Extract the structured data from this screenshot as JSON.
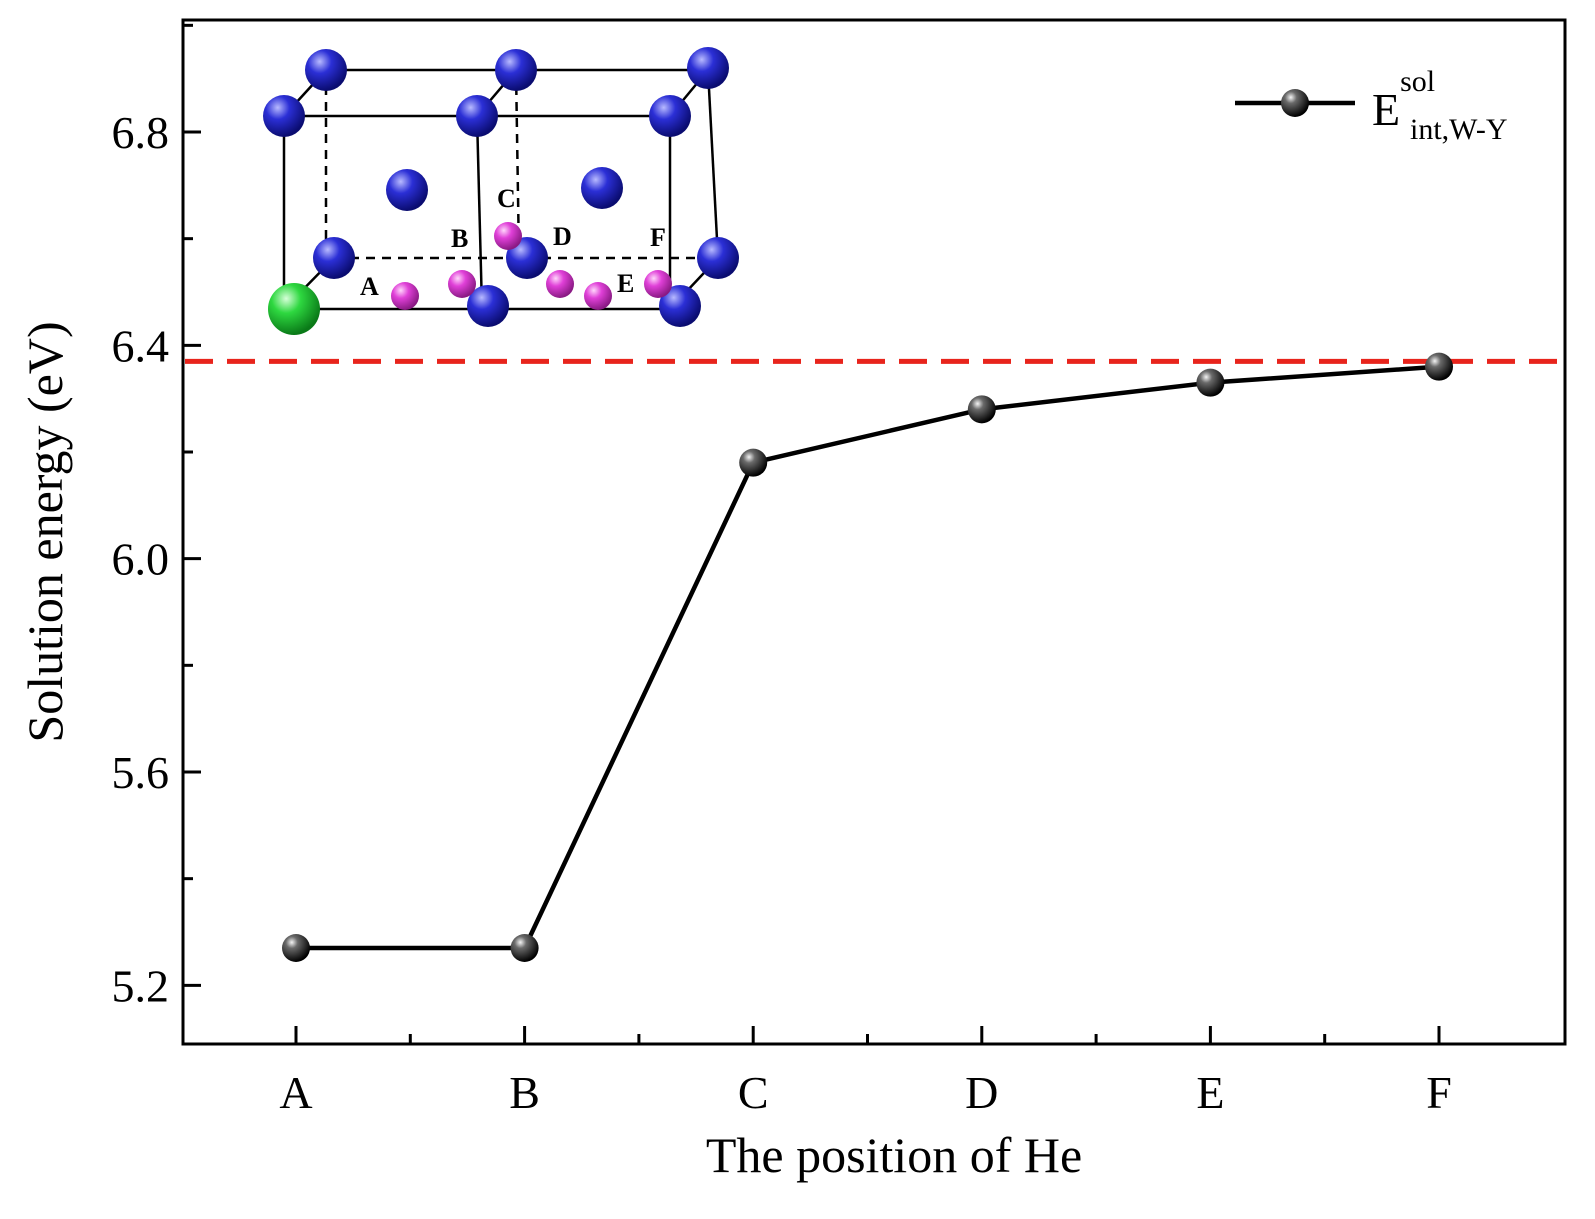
{
  "chart_data": {
    "type": "line",
    "categories": [
      "A",
      "B",
      "C",
      "D",
      "E",
      "F"
    ],
    "series": [
      {
        "name_base": "E",
        "name_sup": "sol",
        "name_sub": "int,W-Y",
        "values": [
          5.27,
          5.27,
          6.18,
          6.28,
          6.33,
          6.36
        ],
        "color": "#000000"
      }
    ],
    "reference_line": {
      "y": 6.37,
      "color": "#e8241c",
      "style": "dashed"
    },
    "xlabel": "The position of He",
    "ylabel": "Solution energy (eV)",
    "ylim": [
      5.09,
      7.01
    ],
    "yticks": [
      "5.2",
      "5.6",
      "6.0",
      "6.4",
      "6.8"
    ],
    "grid": false,
    "legend_position": "top-right",
    "inset": {
      "labels": [
        "A",
        "B",
        "C",
        "D",
        "E",
        "F"
      ],
      "colors": {
        "tungsten": "#2b2fd6",
        "yttrium": "#2ed840",
        "helium_site": "#e040d8"
      }
    }
  }
}
